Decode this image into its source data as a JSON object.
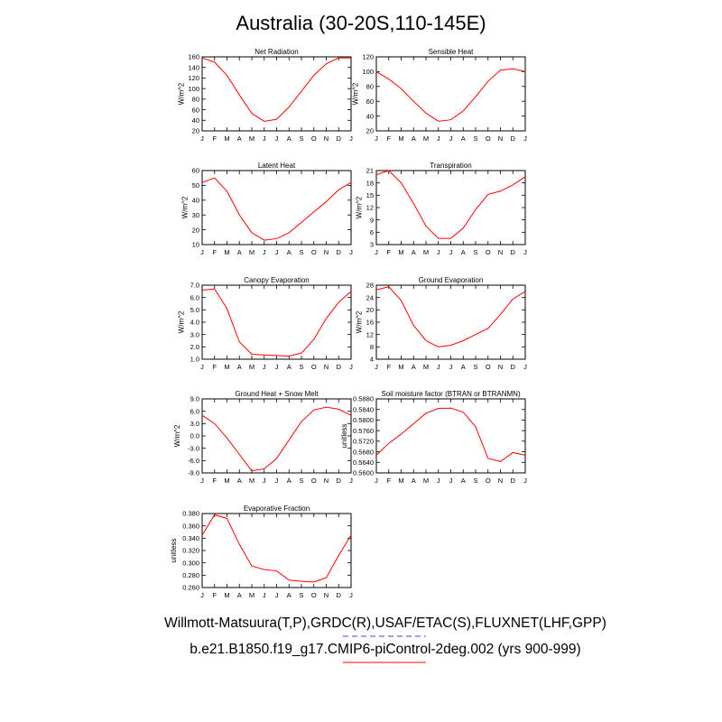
{
  "title": "Australia (30-20S,110-145E)",
  "month_labels": [
    "J",
    "F",
    "M",
    "A",
    "M",
    "J",
    "J",
    "A",
    "S",
    "O",
    "N",
    "D",
    "J"
  ],
  "legend": [
    {
      "text": "Willmott-Matsuura(T,P),GRDC(R),USAF/ETAC(S),FLUXNET(LHF,GPP)",
      "color": "#3b3bff",
      "style": "dashed"
    },
    {
      "text": "b.e21.B1850.f19_g17.CMIP6-piControl-2deg.002 (yrs 900-999)",
      "color": "#ff0000",
      "style": "solid"
    }
  ],
  "chart_data": [
    {
      "type": "line",
      "title": "Net Radiation",
      "ylabel": "W/m^2",
      "ylim": [
        20,
        160
      ],
      "yticks": [
        "20",
        "40",
        "60",
        "80",
        "100",
        "120",
        "140",
        "160"
      ],
      "x": [
        "J",
        "F",
        "M",
        "A",
        "M",
        "J",
        "J",
        "A",
        "S",
        "O",
        "N",
        "D",
        "J"
      ],
      "series": [
        {
          "color": "#ff0000",
          "values": [
            158,
            150,
            125,
            88,
            53,
            38,
            42,
            65,
            95,
            125,
            147,
            158,
            158
          ]
        }
      ]
    },
    {
      "type": "line",
      "title": "Sensible Heat",
      "ylabel": "W/m^2",
      "ylim": [
        20,
        120
      ],
      "yticks": [
        "20",
        "40",
        "60",
        "80",
        "100",
        "120"
      ],
      "x": [
        "J",
        "F",
        "M",
        "A",
        "M",
        "J",
        "J",
        "A",
        "S",
        "O",
        "N",
        "D",
        "J"
      ],
      "series": [
        {
          "color": "#ff0000",
          "values": [
            100,
            90,
            77,
            60,
            44,
            33,
            35,
            47,
            66,
            87,
            102,
            104,
            100
          ]
        }
      ]
    },
    {
      "type": "line",
      "title": "Latent Heat",
      "ylabel": "W/m^2",
      "ylim": [
        10,
        60
      ],
      "yticks": [
        "10",
        "20",
        "30",
        "40",
        "50",
        "60"
      ],
      "x": [
        "J",
        "F",
        "M",
        "A",
        "M",
        "J",
        "J",
        "A",
        "S",
        "O",
        "N",
        "D",
        "J"
      ],
      "series": [
        {
          "color": "#ff0000",
          "values": [
            52,
            55,
            46,
            30,
            18,
            13,
            14,
            18,
            25,
            32,
            39,
            47,
            52
          ]
        }
      ]
    },
    {
      "type": "line",
      "title": "Transpiration",
      "ylabel": "W/m^2",
      "ylim": [
        3,
        21
      ],
      "yticks": [
        "3",
        "6",
        "9",
        "12",
        "15",
        "18",
        "21"
      ],
      "x": [
        "J",
        "F",
        "M",
        "A",
        "M",
        "J",
        "J",
        "A",
        "S",
        "O",
        "N",
        "D",
        "J"
      ],
      "series": [
        {
          "color": "#ff0000",
          "values": [
            20,
            21,
            18,
            13,
            7.5,
            4.5,
            4.5,
            7,
            11.5,
            15.2,
            16,
            17.5,
            19.5
          ]
        }
      ]
    },
    {
      "type": "line",
      "title": "Canopy Evaporation",
      "ylabel": "W/m^2",
      "ylim": [
        1.0,
        7.0
      ],
      "yticks": [
        "1.0",
        "2.0",
        "3.0",
        "4.0",
        "5.0",
        "6.0",
        "7.0"
      ],
      "x": [
        "J",
        "F",
        "M",
        "A",
        "M",
        "J",
        "J",
        "A",
        "S",
        "O",
        "N",
        "D",
        "J"
      ],
      "series": [
        {
          "color": "#ff0000",
          "values": [
            6.6,
            6.7,
            5.1,
            2.4,
            1.4,
            1.35,
            1.3,
            1.25,
            1.5,
            2.6,
            4.3,
            5.6,
            6.5
          ]
        }
      ]
    },
    {
      "type": "line",
      "title": "Ground Evaporation",
      "ylabel": "W/m^2",
      "ylim": [
        4,
        28
      ],
      "yticks": [
        "4",
        "8",
        "12",
        "16",
        "20",
        "24",
        "28"
      ],
      "x": [
        "J",
        "F",
        "M",
        "A",
        "M",
        "J",
        "J",
        "A",
        "S",
        "O",
        "N",
        "D",
        "J"
      ],
      "series": [
        {
          "color": "#ff0000",
          "values": [
            26.5,
            27.5,
            23,
            15,
            10,
            8,
            8.5,
            10,
            12,
            14,
            18.5,
            23.5,
            26
          ]
        }
      ]
    },
    {
      "type": "line",
      "title": "Ground Heat + Snow Melt",
      "ylabel": "W/m^2",
      "ylim": [
        -9.0,
        9.0
      ],
      "yticks": [
        "-9.0",
        "-6.0",
        "-3.0",
        "0.0",
        "3.0",
        "6.0",
        "9.0"
      ],
      "x": [
        "J",
        "F",
        "M",
        "A",
        "M",
        "J",
        "J",
        "A",
        "S",
        "O",
        "N",
        "D",
        "J"
      ],
      "series": [
        {
          "color": "#ff0000",
          "values": [
            5.0,
            3.0,
            -0.5,
            -4.5,
            -8.5,
            -8.0,
            -5.5,
            -1.0,
            3.5,
            6.3,
            7.0,
            6.5,
            5.0
          ]
        }
      ]
    },
    {
      "type": "line",
      "title": "Soil moisture factor (BTRAN or BTRANMN)",
      "ylabel": "unitless",
      "ylim": [
        0.56,
        0.588
      ],
      "yticks": [
        "0.5600",
        "0.5640",
        "0.5680",
        "0.5720",
        "0.5760",
        "0.5800",
        "0.5840",
        "0.5880"
      ],
      "x": [
        "J",
        "F",
        "M",
        "A",
        "M",
        "J",
        "J",
        "A",
        "S",
        "O",
        "N",
        "D",
        "J"
      ],
      "series": [
        {
          "color": "#ff0000",
          "values": [
            0.5667,
            0.5712,
            0.5747,
            0.5786,
            0.5826,
            0.5844,
            0.5845,
            0.583,
            0.5775,
            0.5655,
            0.5643,
            0.5677,
            0.5667
          ]
        }
      ]
    },
    {
      "type": "line",
      "title": "Evaporative Fraction",
      "ylabel": "unitless",
      "ylim": [
        0.26,
        0.38
      ],
      "yticks": [
        "0.260",
        "0.280",
        "0.300",
        "0.320",
        "0.340",
        "0.360",
        "0.380"
      ],
      "x": [
        "J",
        "F",
        "M",
        "A",
        "M",
        "J",
        "J",
        "A",
        "S",
        "O",
        "N",
        "D",
        "J"
      ],
      "series": [
        {
          "color": "#ff0000",
          "values": [
            0.345,
            0.378,
            0.372,
            0.33,
            0.295,
            0.289,
            0.287,
            0.272,
            0.27,
            0.269,
            0.276,
            0.312,
            0.345
          ]
        }
      ]
    }
  ]
}
